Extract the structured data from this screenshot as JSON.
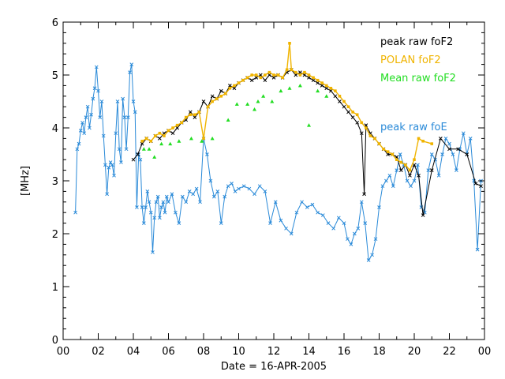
{
  "chart_data": {
    "type": "line",
    "xlabel": "Date = 16-APR-2005",
    "ylabel": "[MHz]",
    "xlim": [
      0,
      24
    ],
    "ylim": [
      0,
      6
    ],
    "x_tick_labels": [
      "00",
      "02",
      "04",
      "06",
      "08",
      "10",
      "12",
      "14",
      "16",
      "18",
      "20",
      "22",
      "00"
    ],
    "y_tick_labels": [
      "0",
      "1",
      "2",
      "3",
      "4",
      "5",
      "6"
    ],
    "legend": [
      "peak raw foF2",
      "POLAN foF2",
      "Mean raw foF2",
      "peak raw foE"
    ],
    "colors": {
      "peak_raw_foF2": "#000000",
      "polan_foF2": "#f0b400",
      "mean_raw_foF2": "#22dd22",
      "peak_raw_foE": "#2a8ad8"
    },
    "series": [
      {
        "name": "peak raw foF2",
        "x": [
          4.0,
          4.25,
          4.5,
          4.75,
          5.0,
          5.25,
          5.5,
          5.75,
          6.0,
          6.25,
          6.5,
          6.75,
          7.0,
          7.25,
          7.5,
          7.75,
          8.0,
          8.25,
          8.5,
          8.75,
          9.0,
          9.25,
          9.5,
          9.75,
          10.0,
          10.25,
          10.5,
          10.75,
          11.0,
          11.25,
          11.5,
          11.75,
          12.0,
          12.25,
          12.5,
          12.75,
          13.0,
          13.25,
          13.5,
          13.75,
          14.0,
          14.25,
          14.5,
          14.75,
          15.0,
          15.25,
          15.5,
          15.75,
          16.0,
          16.25,
          16.5,
          16.75,
          17.0,
          17.15,
          17.25,
          17.5,
          17.75,
          18.0,
          18.25,
          18.5,
          18.75,
          19.0,
          19.25,
          19.5,
          19.75,
          20.0,
          20.25,
          20.5,
          21.0,
          21.5,
          22.0,
          22.5,
          23.0,
          23.5,
          23.8
        ],
        "values": [
          3.4,
          3.5,
          3.7,
          3.8,
          3.75,
          3.85,
          3.8,
          3.9,
          3.95,
          3.9,
          4.0,
          4.1,
          4.15,
          4.3,
          4.2,
          4.3,
          4.5,
          4.4,
          4.6,
          4.55,
          4.7,
          4.65,
          4.8,
          4.75,
          4.85,
          4.9,
          4.95,
          4.9,
          4.95,
          5.0,
          4.9,
          5.0,
          4.95,
          5.0,
          4.95,
          5.05,
          5.1,
          5.0,
          5.05,
          5.0,
          4.95,
          4.9,
          4.85,
          4.8,
          4.75,
          4.7,
          4.6,
          4.5,
          4.4,
          4.3,
          4.2,
          4.1,
          3.9,
          2.75,
          4.05,
          3.9,
          3.8,
          3.7,
          3.6,
          3.5,
          3.5,
          3.45,
          3.2,
          3.3,
          3.1,
          3.3,
          3.1,
          2.35,
          3.2,
          3.8,
          3.6,
          3.6,
          3.5,
          2.95,
          2.9
        ]
      },
      {
        "name": "POLAN foF2",
        "x": [
          4.5,
          4.75,
          5.0,
          5.25,
          5.5,
          5.75,
          6.0,
          6.25,
          6.5,
          6.75,
          7.0,
          7.25,
          7.5,
          7.75,
          8.0,
          8.25,
          8.5,
          8.75,
          9.0,
          9.25,
          9.5,
          9.75,
          10.0,
          10.25,
          10.5,
          10.75,
          11.0,
          11.25,
          11.5,
          11.75,
          12.0,
          12.25,
          12.5,
          12.75,
          12.9,
          13.0,
          13.25,
          13.5,
          13.75,
          14.0,
          14.25,
          14.5,
          14.75,
          15.0,
          15.25,
          15.5,
          15.75,
          16.0,
          16.25,
          16.5,
          16.75,
          17.0,
          17.25,
          17.5,
          17.75,
          18.0,
          18.25,
          18.5,
          18.75,
          19.0,
          19.25,
          19.5,
          19.75,
          20.0,
          20.25,
          20.5,
          21.0
        ],
        "values": [
          3.75,
          3.8,
          3.75,
          3.85,
          3.9,
          3.85,
          3.95,
          4.0,
          4.05,
          4.1,
          4.2,
          4.25,
          4.25,
          4.3,
          3.8,
          4.4,
          4.5,
          4.55,
          4.6,
          4.65,
          4.75,
          4.8,
          4.85,
          4.9,
          4.95,
          5.0,
          5.0,
          4.95,
          5.0,
          5.05,
          5.0,
          5.0,
          4.95,
          5.1,
          5.6,
          5.1,
          5.05,
          5.0,
          5.05,
          5.0,
          4.95,
          4.9,
          4.85,
          4.8,
          4.75,
          4.7,
          4.6,
          4.5,
          4.4,
          4.3,
          4.25,
          4.1,
          4.0,
          3.85,
          3.8,
          3.7,
          3.6,
          3.55,
          3.5,
          3.4,
          3.35,
          3.3,
          3.2,
          3.4,
          3.8,
          3.75,
          3.7
        ]
      },
      {
        "name": "Mean raw foF2",
        "x": [
          4.6,
          4.9,
          5.2,
          5.6,
          6.1,
          6.6,
          7.3,
          7.9,
          8.5,
          9.4,
          9.9,
          10.5,
          10.9,
          11.1,
          11.4,
          11.9,
          12.4,
          12.9,
          13.5,
          14.0,
          14.5,
          15.0
        ],
        "values": [
          3.6,
          3.6,
          3.45,
          3.7,
          3.7,
          3.75,
          3.8,
          3.75,
          3.8,
          4.15,
          4.45,
          4.45,
          4.35,
          4.5,
          4.6,
          4.5,
          4.7,
          4.75,
          4.8,
          4.05,
          4.7,
          4.6
        ]
      },
      {
        "name": "peak raw foE",
        "x": [
          0.7,
          0.8,
          0.9,
          1.0,
          1.1,
          1.2,
          1.3,
          1.4,
          1.5,
          1.6,
          1.7,
          1.8,
          1.9,
          2.0,
          2.1,
          2.2,
          2.3,
          2.4,
          2.5,
          2.6,
          2.7,
          2.8,
          2.9,
          3.0,
          3.1,
          3.2,
          3.3,
          3.4,
          3.5,
          3.6,
          3.7,
          3.8,
          3.9,
          4.0,
          4.1,
          4.2,
          4.3,
          4.4,
          4.5,
          4.6,
          4.7,
          4.8,
          4.9,
          5.0,
          5.1,
          5.2,
          5.3,
          5.4,
          5.5,
          5.6,
          5.7,
          5.8,
          5.9,
          6.0,
          6.2,
          6.4,
          6.6,
          6.8,
          7.0,
          7.2,
          7.4,
          7.6,
          7.8,
          8.0,
          8.2,
          8.4,
          8.6,
          8.8,
          9.0,
          9.2,
          9.4,
          9.6,
          9.8,
          10.0,
          10.3,
          10.6,
          10.9,
          11.2,
          11.5,
          11.8,
          12.1,
          12.4,
          12.7,
          13.0,
          13.3,
          13.6,
          13.9,
          14.2,
          14.5,
          14.8,
          15.1,
          15.4,
          15.7,
          16.0,
          16.2,
          16.4,
          16.6,
          16.8,
          17.0,
          17.2,
          17.4,
          17.6,
          17.8,
          18.0,
          18.2,
          18.4,
          18.6,
          18.8,
          19.0,
          19.2,
          19.4,
          19.6,
          19.8,
          20.0,
          20.2,
          20.4,
          20.6,
          20.8,
          21.0,
          21.2,
          21.4,
          21.6,
          21.8,
          22.0,
          22.2,
          22.4,
          22.6,
          22.8,
          23.0,
          23.2,
          23.4,
          23.6,
          23.8
        ],
        "values": [
          2.4,
          3.6,
          3.7,
          3.95,
          4.1,
          3.9,
          4.2,
          4.4,
          4.0,
          4.25,
          4.55,
          4.75,
          5.15,
          4.7,
          4.2,
          4.5,
          3.85,
          3.3,
          2.75,
          3.25,
          3.35,
          3.3,
          3.1,
          3.9,
          4.5,
          3.6,
          3.35,
          4.55,
          4.2,
          3.6,
          4.2,
          5.05,
          5.2,
          4.5,
          4.3,
          2.5,
          3.5,
          3.4,
          2.5,
          2.2,
          2.5,
          2.8,
          2.6,
          2.4,
          1.65,
          2.3,
          2.6,
          2.7,
          2.3,
          2.5,
          2.6,
          2.4,
          2.7,
          2.6,
          2.75,
          2.4,
          2.2,
          2.7,
          2.6,
          2.8,
          2.75,
          2.85,
          2.6,
          3.8,
          3.5,
          3.0,
          2.7,
          2.8,
          2.2,
          2.7,
          2.9,
          2.95,
          2.8,
          2.85,
          2.9,
          2.85,
          2.75,
          2.9,
          2.8,
          2.2,
          2.6,
          2.25,
          2.1,
          2.0,
          2.4,
          2.6,
          2.5,
          2.55,
          2.4,
          2.35,
          2.2,
          2.1,
          2.3,
          2.2,
          1.9,
          1.8,
          2.0,
          2.1,
          2.6,
          2.2,
          1.5,
          1.6,
          1.9,
          2.5,
          2.9,
          3.0,
          3.1,
          2.9,
          3.2,
          3.5,
          3.3,
          3.0,
          2.9,
          3.0,
          3.3,
          2.5,
          2.4,
          3.2,
          3.5,
          3.4,
          3.1,
          3.5,
          3.8,
          3.7,
          3.5,
          3.2,
          3.6,
          3.9,
          3.5,
          3.8,
          3.0,
          1.7,
          3.0
        ]
      }
    ]
  }
}
